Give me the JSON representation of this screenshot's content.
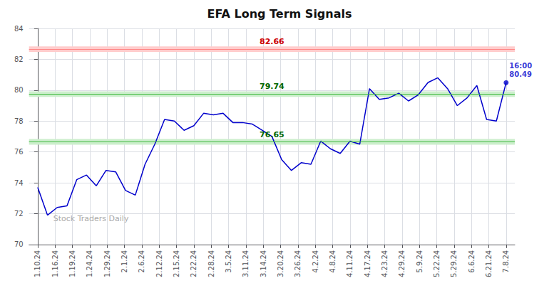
{
  "chart_data": {
    "type": "line",
    "title": "EFA Long Term Signals",
    "x": [
      0,
      0.5625,
      1.125,
      1.6875,
      2.25,
      2.8125,
      3.375,
      3.9375,
      4.5,
      5.0625,
      5.625,
      6.1875,
      6.75,
      7.3125,
      7.875,
      8.4375,
      9,
      9.5625,
      10.125,
      10.6875,
      11.25,
      11.8125,
      12.375,
      12.9375,
      13.5,
      14.0625,
      14.625,
      15.1875,
      15.75,
      16.3125,
      16.875,
      17.4375,
      18,
      18.5625,
      19.125,
      19.6875,
      20.25,
      20.8125,
      21.375,
      21.9375,
      22.5,
      23.0625,
      23.625,
      24.1875,
      24.75,
      25.3125,
      25.875,
      26.4375,
      27
    ],
    "values": [
      73.7,
      71.9,
      72.4,
      72.5,
      74.2,
      74.5,
      73.8,
      74.8,
      74.7,
      73.5,
      73.2,
      75.2,
      76.5,
      78.1,
      78.0,
      77.4,
      77.7,
      78.5,
      78.4,
      78.5,
      77.9,
      77.9,
      77.8,
      77.4,
      77.0,
      75.5,
      74.8,
      75.3,
      75.2,
      76.7,
      76.2,
      75.9,
      76.7,
      76.5,
      80.1,
      79.4,
      79.5,
      79.8,
      79.3,
      79.7,
      80.5,
      80.8,
      80.1,
      79.0,
      79.5,
      80.3,
      78.1,
      78.0,
      80.49
    ],
    "color": "#0000cc",
    "xlim": [
      -0.5,
      27.5
    ],
    "xticks": [
      {
        "value": 0,
        "label": "1.10.24"
      },
      {
        "value": 1,
        "label": "1.16.24"
      },
      {
        "value": 2,
        "label": "1.19.24"
      },
      {
        "value": 3,
        "label": "1.24.24"
      },
      {
        "value": 4,
        "label": "1.29.24"
      },
      {
        "value": 5,
        "label": "2.1.24"
      },
      {
        "value": 6,
        "label": "2.6.24"
      },
      {
        "value": 7,
        "label": "2.12.24"
      },
      {
        "value": 8,
        "label": "2.15.24"
      },
      {
        "value": 9,
        "label": "2.22.24"
      },
      {
        "value": 10,
        "label": "2.28.24"
      },
      {
        "value": 11,
        "label": "3.5.24"
      },
      {
        "value": 12,
        "label": "3.11.24"
      },
      {
        "value": 13,
        "label": "3.14.24"
      },
      {
        "value": 14,
        "label": "3.20.24"
      },
      {
        "value": 15,
        "label": "3.26.24"
      },
      {
        "value": 16,
        "label": "4.2.24"
      },
      {
        "value": 17,
        "label": "4.8.24"
      },
      {
        "value": 18,
        "label": "4.11.24"
      },
      {
        "value": 19,
        "label": "4.17.24"
      },
      {
        "value": 20,
        "label": "4.23.24"
      },
      {
        "value": 21,
        "label": "4.29.24"
      },
      {
        "value": 22,
        "label": "5.9.24"
      },
      {
        "value": 23,
        "label": "5.22.24"
      },
      {
        "value": 24,
        "label": "5.29.24"
      },
      {
        "value": 25,
        "label": "6.6.24"
      },
      {
        "value": 26,
        "label": "6.21.24"
      },
      {
        "value": 27,
        "label": "7.8.24"
      }
    ],
    "ylim": [
      70,
      84
    ],
    "yticks": [
      70,
      72,
      74,
      76,
      78,
      80,
      82,
      84
    ],
    "grid": true,
    "hlines": [
      {
        "value": 82.66,
        "label": "82.66",
        "color": "#ff8888",
        "band_color": "#ffcccc",
        "text_color": "#cc0000"
      },
      {
        "value": 79.74,
        "label": "79.74",
        "color": "#44bb44",
        "band_color": "#cceecc",
        "text_color": "#006600"
      },
      {
        "value": 76.65,
        "label": "76.65",
        "color": "#44bb44",
        "band_color": "#cceecc",
        "text_color": "#006600"
      }
    ],
    "annotations": [
      {
        "x": 27,
        "y": 80.49,
        "text": "16:00\n80.49",
        "color": "#0000cc",
        "marker": "circle"
      }
    ],
    "watermark": {
      "text": "Stock Traders Daily",
      "color": "#aaaaaa"
    }
  }
}
